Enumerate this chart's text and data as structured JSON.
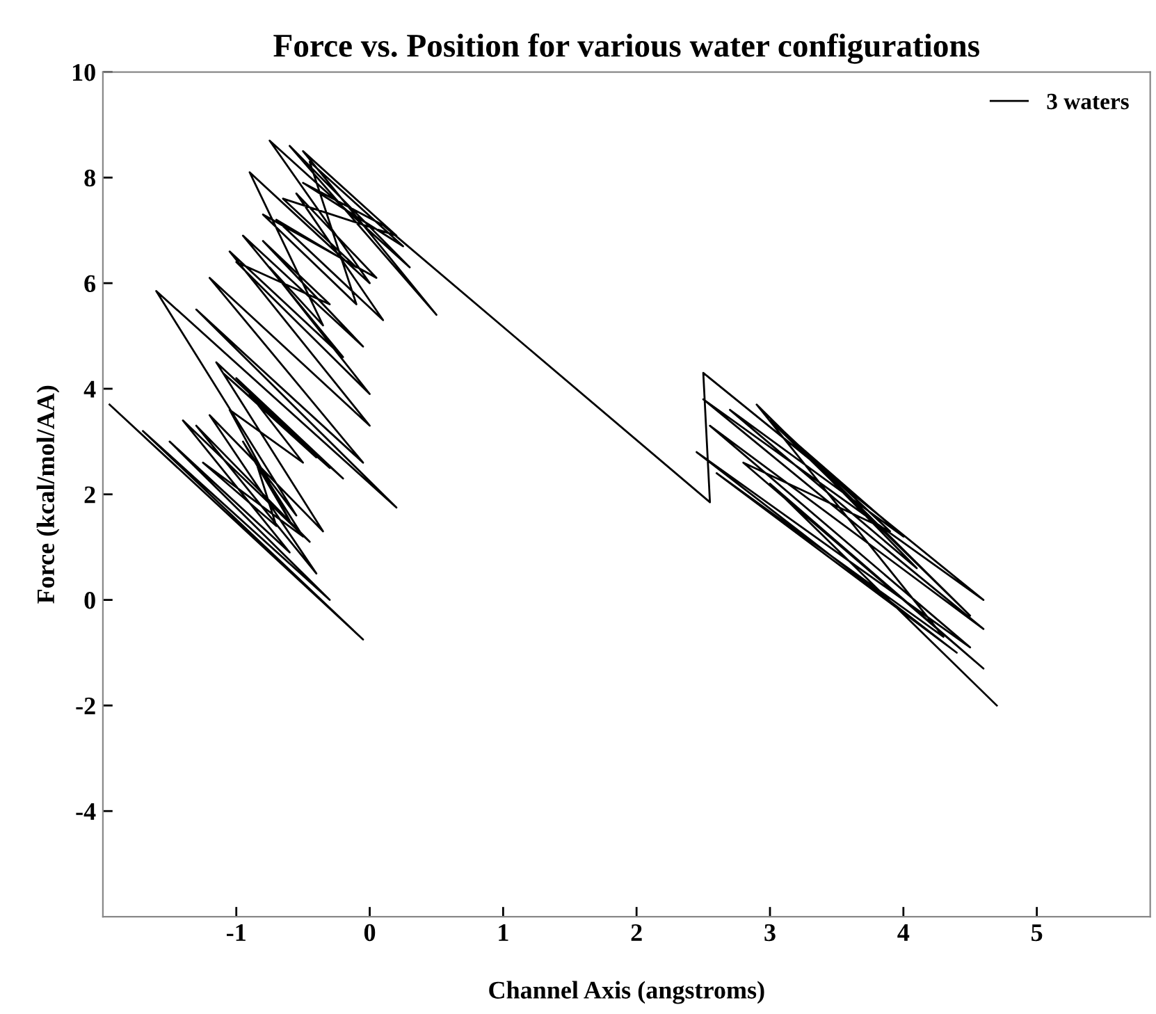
{
  "chart_data": {
    "type": "line",
    "title": "Force vs. Position for various water configurations",
    "xlabel": "Channel Axis (angstroms)",
    "ylabel": "Force (kcal/mol/AA)",
    "xlim": [
      -2,
      5.85
    ],
    "ylim": [
      -6,
      10
    ],
    "xticks": [
      -1,
      0,
      1,
      2,
      3,
      4,
      5
    ],
    "yticks": [
      -4,
      -2,
      0,
      2,
      4,
      6,
      8,
      10
    ],
    "grid": false,
    "legend": "top right",
    "marker": "none",
    "line_style": "solid",
    "series": [
      {
        "name": "3 waters",
        "color": "#000000",
        "x": [
          -1.95,
          -0.05,
          -1.7,
          -0.3,
          -1.5,
          -0.6,
          -1.4,
          -0.45,
          -1.3,
          -0.4,
          -1.2,
          -0.35,
          -1.15,
          -0.3,
          -1.1,
          -0.4,
          -1.0,
          -0.2,
          -0.9,
          -0.5,
          -1.05,
          -0.6,
          -0.95,
          -0.5,
          -1.25,
          -0.7,
          -0.85,
          -0.55,
          -1.6,
          0.2,
          -1.3,
          -0.05,
          -1.2,
          0.0,
          -1.05,
          -0.2,
          -0.95,
          -0.05,
          -0.8,
          -0.3,
          -1.0,
          0.0,
          -0.75,
          -0.35,
          -0.9,
          0.0,
          -0.75,
          0.3,
          -0.6,
          0.5,
          -0.5,
          0.2,
          -0.65,
          -0.1,
          -0.7,
          0.1,
          -0.55,
          0.05,
          -0.8,
          -0.1,
          -0.45,
          0.25,
          -0.5,
          0.1,
          2.55,
          2.5,
          4.6,
          2.5,
          4.6,
          2.55,
          4.5,
          2.45,
          4.4,
          2.6,
          4.3,
          2.9,
          4.5,
          3.0,
          4.0,
          2.7,
          4.1,
          3.1,
          3.9,
          2.8,
          4.6,
          3.0,
          4.7
        ],
        "values": [
          3.7,
          -0.75,
          3.2,
          0.0,
          3.0,
          0.9,
          3.4,
          1.1,
          3.3,
          0.5,
          3.5,
          1.3,
          4.5,
          2.5,
          4.3,
          2.7,
          4.2,
          2.3,
          3.9,
          2.6,
          3.6,
          1.5,
          3.0,
          1.2,
          2.6,
          1.4,
          2.6,
          1.6,
          5.85,
          1.75,
          5.5,
          2.6,
          6.1,
          3.3,
          6.6,
          4.6,
          6.9,
          4.8,
          6.8,
          5.6,
          6.4,
          3.9,
          6.3,
          5.2,
          8.1,
          6.0,
          8.7,
          6.3,
          8.6,
          5.4,
          8.5,
          6.9,
          7.6,
          6.3,
          7.2,
          5.3,
          7.7,
          6.1,
          7.3,
          5.6,
          8.3,
          6.7,
          7.9,
          7.1,
          1.85,
          4.3,
          0.0,
          3.8,
          -0.55,
          3.3,
          -0.9,
          2.8,
          -1.0,
          2.4,
          -0.7,
          3.7,
          -0.3,
          3.4,
          1.2,
          3.6,
          0.6,
          3.2,
          1.3,
          2.6,
          -1.3,
          2.2,
          -2.0
        ]
      }
    ]
  }
}
